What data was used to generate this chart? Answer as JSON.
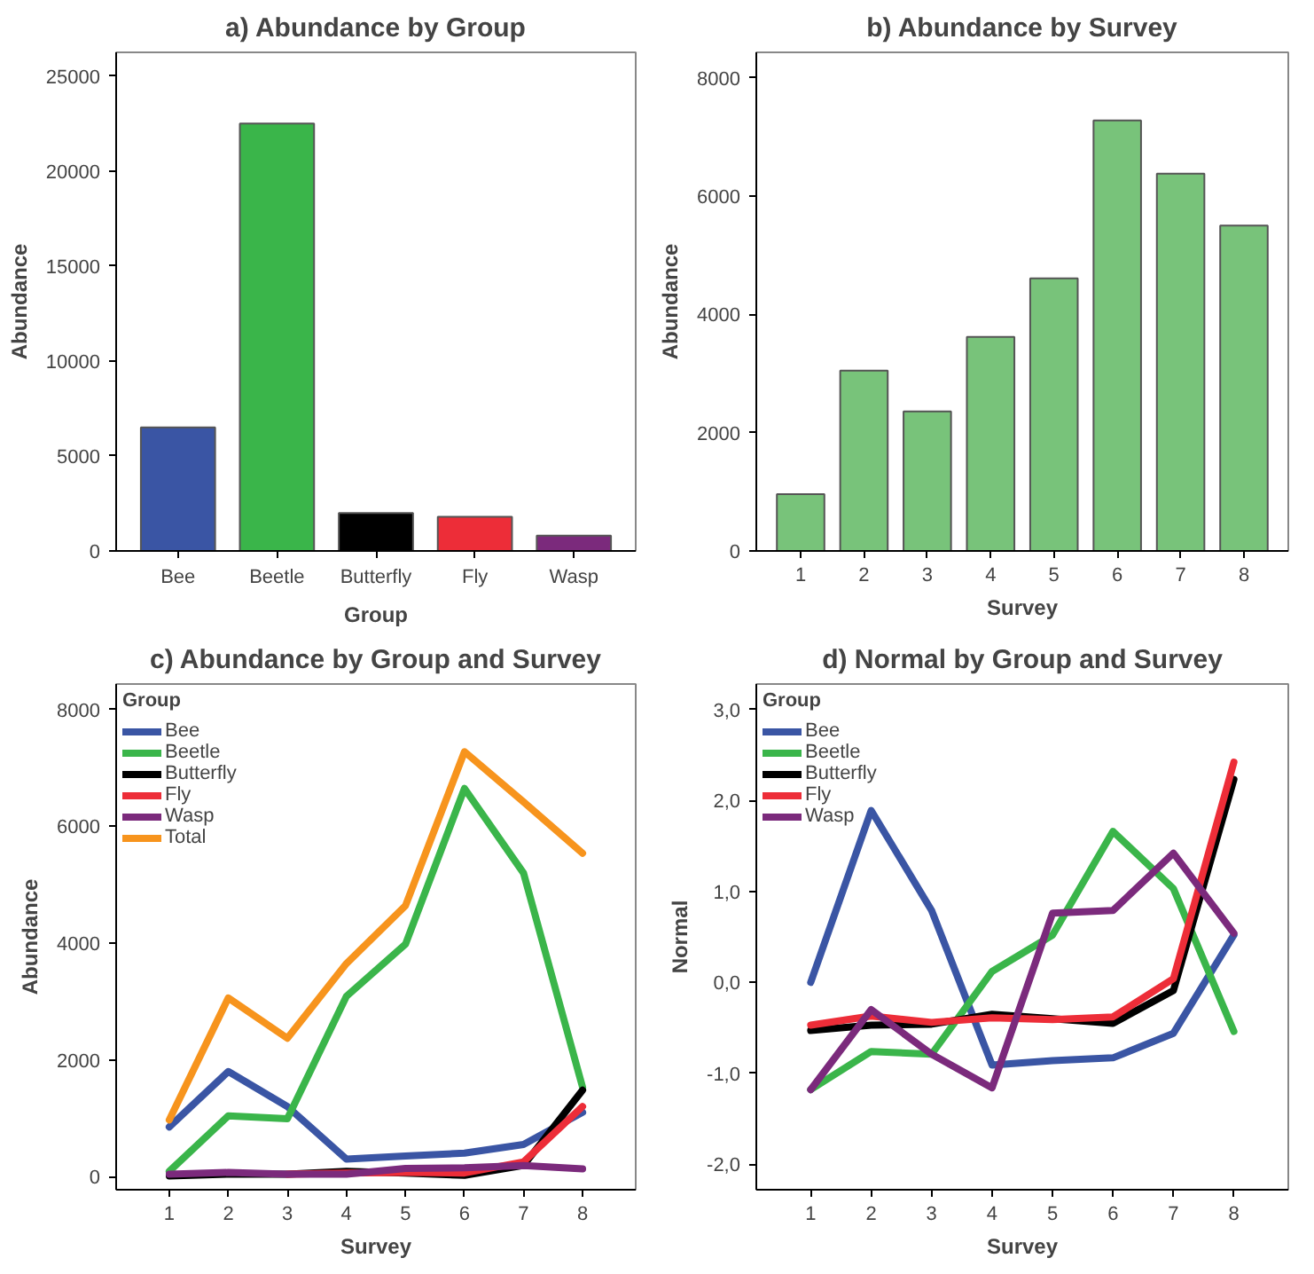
{
  "chart_data": [
    {
      "type": "bar",
      "title": "a) Abundance by Group",
      "xlabel": "Group",
      "ylabel": "Abundance",
      "categories": [
        "Bee",
        "Beetle",
        "Butterfly",
        "Fly",
        "Wasp"
      ],
      "values": [
        6500,
        22500,
        2000,
        1800,
        800
      ],
      "colors": [
        "#3a55a4",
        "#3ab54a",
        "#000000",
        "#ed2d38",
        "#7b2a7c"
      ],
      "ylim": [
        0,
        26250
      ],
      "yticks": [
        0,
        5000,
        10000,
        15000,
        20000,
        25000
      ],
      "grid": false
    },
    {
      "type": "bar",
      "title": "b) Abundance by Survey",
      "xlabel": "Survey",
      "ylabel": "Abundance",
      "categories": [
        "1",
        "2",
        "3",
        "4",
        "5",
        "6",
        "7",
        "8"
      ],
      "values": [
        960,
        3050,
        2360,
        3620,
        4610,
        7280,
        6380,
        5500
      ],
      "color": "#78c37a",
      "ylim": [
        0,
        8430
      ],
      "yticks": [
        0,
        2000,
        4000,
        6000,
        8000
      ],
      "grid": false
    },
    {
      "type": "line",
      "title": "c) Abundance by Group and Survey",
      "xlabel": "Survey",
      "ylabel": "Abundance",
      "legend_title": "Group",
      "legend": "top left",
      "categories": [
        "1",
        "2",
        "3",
        "4",
        "5",
        "6",
        "7",
        "8"
      ],
      "ylim": [
        -226,
        8440
      ],
      "yticks": [
        0,
        2000,
        4000,
        6000,
        8000
      ],
      "grid": false,
      "series": [
        {
          "name": "Bee",
          "color": "#3a55a4",
          "values": [
            850,
            1800,
            1200,
            300,
            350,
            400,
            550,
            1100
          ]
        },
        {
          "name": "Beetle",
          "color": "#3ab54a",
          "values": [
            90,
            1040,
            990,
            3090,
            3980,
            6650,
            5200,
            1530
          ]
        },
        {
          "name": "Butterfly",
          "color": "#000000",
          "values": [
            10,
            40,
            40,
            90,
            60,
            20,
            190,
            1480
          ]
        },
        {
          "name": "Fly",
          "color": "#ed2d38",
          "values": [
            null,
            null,
            40,
            60,
            70,
            60,
            250,
            1200
          ]
        },
        {
          "name": "Wasp",
          "color": "#7b2a7c",
          "values": [
            40,
            70,
            40,
            40,
            140,
            150,
            190,
            130
          ]
        },
        {
          "name": "Total",
          "color": "#f7941d",
          "values": [
            970,
            3060,
            2370,
            3650,
            4640,
            7280,
            6420,
            5540
          ]
        }
      ]
    },
    {
      "type": "line",
      "title": "d) Normal by Group and Survey",
      "xlabel": "Survey",
      "ylabel": "Normal",
      "legend_title": "Group",
      "legend": "top left",
      "categories": [
        "1",
        "2",
        "3",
        "4",
        "5",
        "6",
        "7",
        "8"
      ],
      "ylim": [
        -2.28,
        3.28
      ],
      "yticks": [
        {
          "value": -2,
          "label": "-2,0"
        },
        {
          "value": -1,
          "label": "-1,0"
        },
        {
          "value": 0,
          "label": "0,0"
        },
        {
          "value": 1,
          "label": "1,0"
        },
        {
          "value": 2,
          "label": "2,0"
        },
        {
          "value": 3,
          "label": "3,0"
        }
      ],
      "grid": false,
      "series": [
        {
          "name": "Bee",
          "color": "#3a55a4",
          "values": [
            0.0,
            1.89,
            0.79,
            -0.91,
            -0.86,
            -0.83,
            -0.56,
            0.52
          ]
        },
        {
          "name": "Beetle",
          "color": "#3ab54a",
          "values": [
            -1.18,
            -0.76,
            -0.79,
            0.12,
            0.52,
            1.66,
            1.03,
            -0.54
          ]
        },
        {
          "name": "Butterfly",
          "color": "#000000",
          "values": [
            -0.53,
            -0.47,
            -0.46,
            -0.35,
            -0.4,
            -0.45,
            -0.09,
            2.23
          ]
        },
        {
          "name": "Fly",
          "color": "#ed2d38",
          "values": [
            -0.47,
            -0.37,
            -0.44,
            -0.39,
            -0.41,
            -0.38,
            0.04,
            2.42
          ]
        },
        {
          "name": "Wasp",
          "color": "#7b2a7c",
          "values": [
            -1.18,
            -0.3,
            -0.79,
            -1.16,
            0.76,
            0.79,
            1.42,
            0.54
          ]
        }
      ]
    }
  ]
}
